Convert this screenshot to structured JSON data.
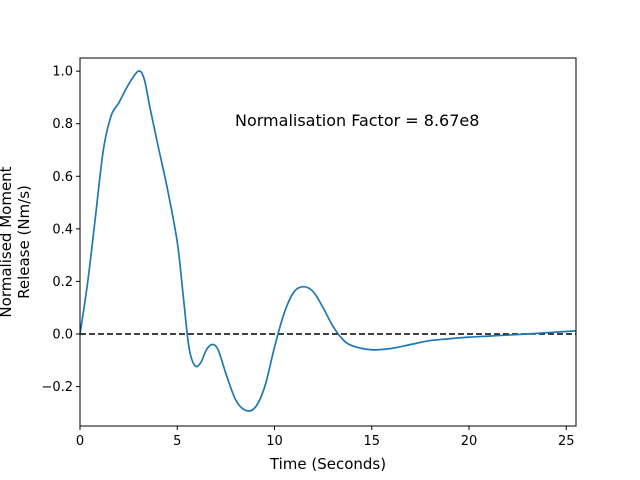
{
  "chart_data": {
    "type": "line",
    "xlabel": "Time (Seconds)",
    "ylabel_lines": [
      "Normalised Moment",
      "Release (Nm/s)"
    ],
    "annotation": "Normalisation Factor = 8.67e8",
    "xlim": [
      0,
      25.5
    ],
    "ylim": [
      -0.35,
      1.05
    ],
    "xticks": [
      0,
      5,
      10,
      15,
      20,
      25
    ],
    "yticks": [
      -0.2,
      0.0,
      0.2,
      0.4,
      0.6,
      0.8,
      1.0
    ],
    "ytick_labels": [
      "−0.2",
      "0.0",
      "0.2",
      "0.4",
      "0.6",
      "0.8",
      "1.0"
    ],
    "grid": false,
    "reference_line": {
      "y": 0,
      "style": "dashed",
      "color": "#000000"
    },
    "series": [
      {
        "color": "#1f77b4",
        "points": [
          [
            0,
            0
          ],
          [
            0.4,
            0.2
          ],
          [
            0.8,
            0.45
          ],
          [
            1.2,
            0.7
          ],
          [
            1.6,
            0.83
          ],
          [
            2.0,
            0.88
          ],
          [
            2.5,
            0.95
          ],
          [
            3.0,
            1.0
          ],
          [
            3.3,
            0.97
          ],
          [
            3.6,
            0.86
          ],
          [
            4.0,
            0.72
          ],
          [
            4.5,
            0.55
          ],
          [
            5.0,
            0.35
          ],
          [
            5.3,
            0.15
          ],
          [
            5.6,
            -0.05
          ],
          [
            5.9,
            -0.12
          ],
          [
            6.2,
            -0.11
          ],
          [
            6.5,
            -0.06
          ],
          [
            6.8,
            -0.04
          ],
          [
            7.1,
            -0.06
          ],
          [
            7.5,
            -0.15
          ],
          [
            8.0,
            -0.25
          ],
          [
            8.5,
            -0.29
          ],
          [
            9.0,
            -0.28
          ],
          [
            9.5,
            -0.2
          ],
          [
            10.0,
            -0.05
          ],
          [
            10.5,
            0.08
          ],
          [
            11.0,
            0.16
          ],
          [
            11.5,
            0.18
          ],
          [
            12.0,
            0.16
          ],
          [
            12.5,
            0.1
          ],
          [
            13.0,
            0.03
          ],
          [
            13.5,
            -0.02
          ],
          [
            14.0,
            -0.045
          ],
          [
            15.0,
            -0.06
          ],
          [
            16.0,
            -0.055
          ],
          [
            17.0,
            -0.04
          ],
          [
            18.0,
            -0.025
          ],
          [
            19.0,
            -0.018
          ],
          [
            20.0,
            -0.012
          ],
          [
            21.0,
            -0.008
          ],
          [
            22.0,
            -0.004
          ],
          [
            23.0,
            0.0
          ],
          [
            24.0,
            0.005
          ],
          [
            25.5,
            0.012
          ]
        ]
      }
    ]
  }
}
